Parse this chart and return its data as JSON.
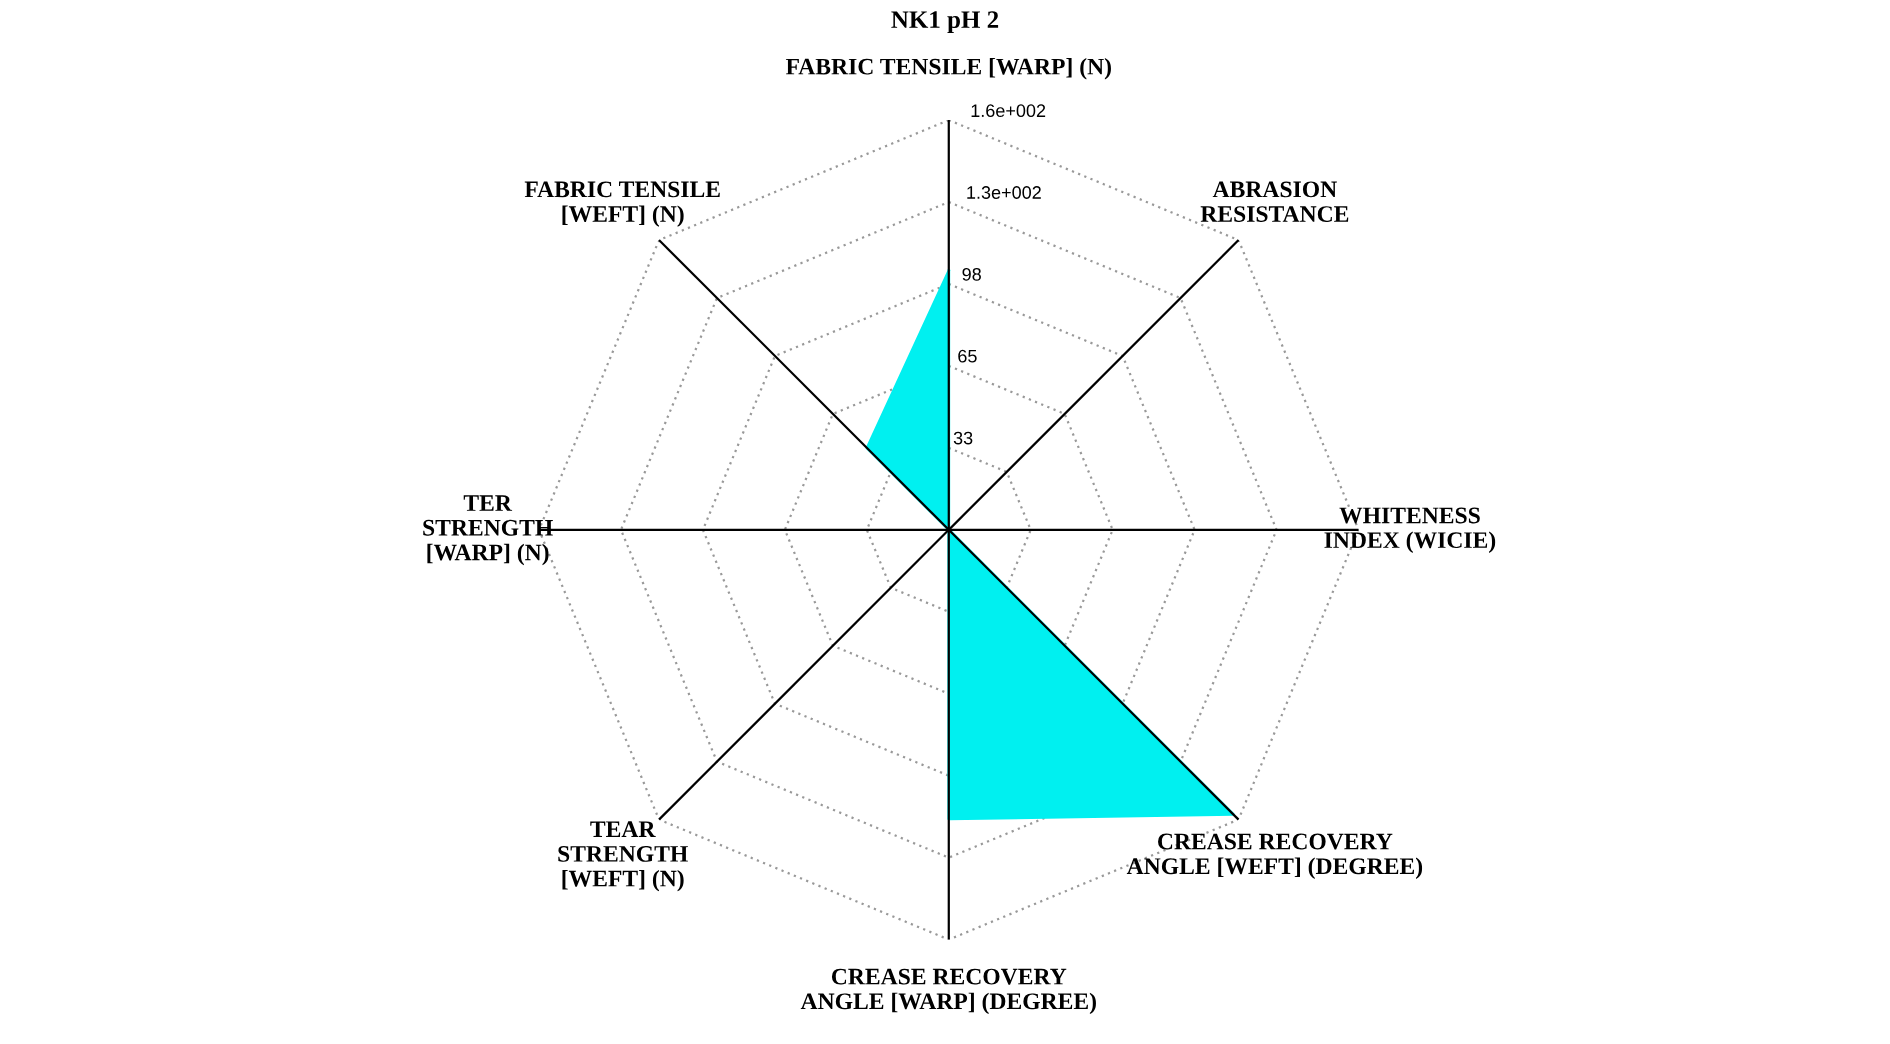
{
  "chart_data": {
    "type": "radar",
    "title": "NK1 pH 2",
    "categories": [
      "FABRIC TENSILE [WARP] (N)",
      "ABRASION\nRESISTANCE",
      "WHITENESS\nINDEX (WICIE)",
      "CREASE RECOVERY\nANGLE [WEFT] (DEGREE)",
      "CREASE RECOVERY\nANGLE [WARP] (DEGREE)",
      "TEAR\nSTRENGTH\n[WEFT] (N)",
      "TER\nSTRENGTH\n[WARP] (N)",
      "FABRIC TENSILE\n[WEFT] (N)"
    ],
    "series": [
      {
        "color": "#00f0f0",
        "values": [
          103,
          0,
          0,
          160,
          115,
          0,
          0,
          46
        ]
      }
    ],
    "ylim": [
      0,
      163
    ],
    "yticks": [
      {
        "value": 32.6,
        "label": "33"
      },
      {
        "value": 65.2,
        "label": "65"
      },
      {
        "value": 97.8,
        "label": "98"
      },
      {
        "value": 130.4,
        "label": "1.3e+002"
      },
      {
        "value": 163,
        "label": "1.6e+002"
      }
    ],
    "grid": true
  }
}
